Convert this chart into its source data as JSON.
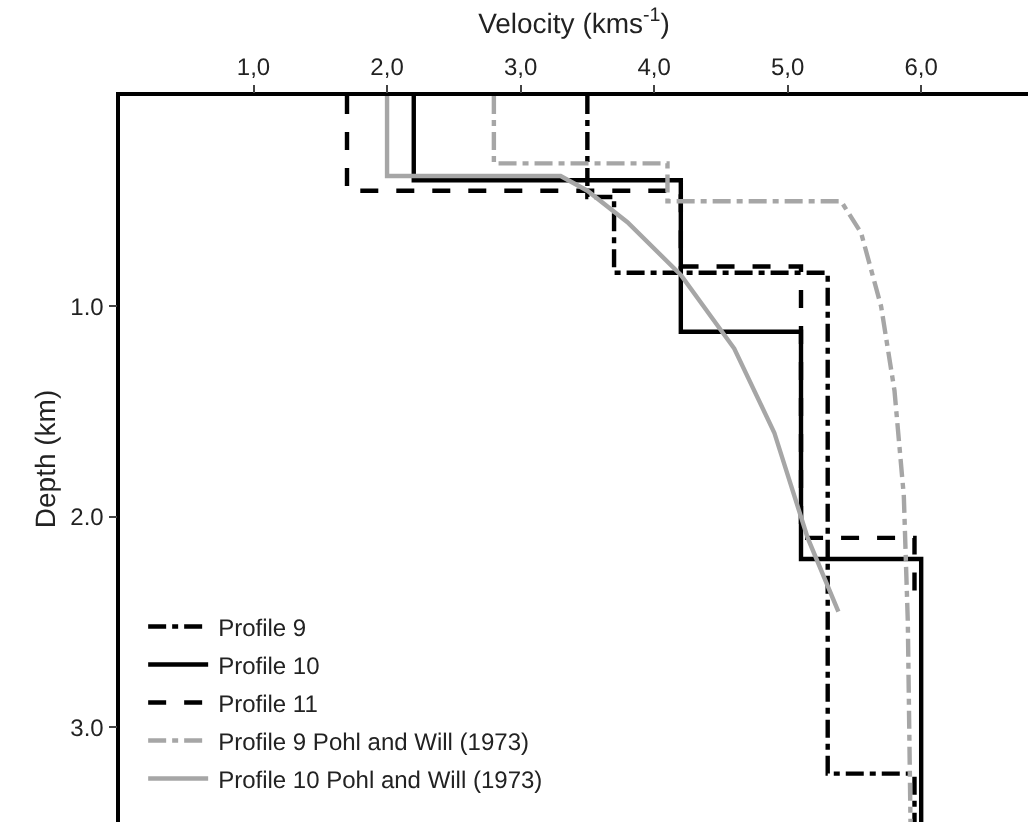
{
  "chart_data": {
    "type": "line",
    "xlabel": "Velocity (kms$^{-1}$)",
    "ylabel": "Depth (km)",
    "xlim": [
      0,
      6.8
    ],
    "xticks": [
      {
        "value": 1,
        "label": "1,0"
      },
      {
        "value": 2,
        "label": "2,0"
      },
      {
        "value": 3,
        "label": "3,0"
      },
      {
        "value": 4,
        "label": "4,0"
      },
      {
        "value": 5,
        "label": "5,0"
      },
      {
        "value": 6,
        "label": "6,0"
      }
    ],
    "ylim": [
      3.45,
      0
    ],
    "yticks": [
      {
        "value": 1,
        "label": "1.0"
      },
      {
        "value": 2,
        "label": "2.0"
      },
      {
        "value": 3,
        "label": "3.0"
      }
    ],
    "grid": false,
    "legend": "bottom left",
    "marker": "none",
    "series": [
      {
        "name": "Profile 9",
        "color": "#000000",
        "line_style": "dashdot",
        "x": [
          3.5,
          3.5,
          3.7,
          3.7,
          5.3,
          5.3,
          5.95,
          5.95
        ],
        "values": [
          0,
          0.48,
          0.48,
          0.84,
          0.84,
          3.22,
          3.22,
          3.45
        ]
      },
      {
        "name": "Profile 10",
        "color": "#000000",
        "line_style": "solid",
        "x": [
          2.2,
          2.2,
          4.2,
          4.2,
          5.1,
          5.1,
          6.0,
          6.0
        ],
        "values": [
          0,
          0.4,
          0.4,
          1.12,
          1.12,
          2.2,
          2.2,
          3.45
        ]
      },
      {
        "name": "Profile 11",
        "color": "#000000",
        "line_style": "dashed",
        "x": [
          1.7,
          1.7,
          4.2,
          4.2,
          5.1,
          5.1,
          5.95,
          5.95
        ],
        "values": [
          0,
          0.45,
          0.45,
          0.81,
          0.81,
          2.1,
          2.1,
          2.4
        ]
      },
      {
        "name": "Profile 9 Pohl and Will (1973)",
        "color": "#a6a6a6",
        "line_style": "dashdot",
        "x": [
          2.8,
          2.8,
          4.1,
          4.1,
          5.4,
          5.55,
          5.7,
          5.8,
          5.87,
          5.9,
          5.92
        ],
        "values": [
          0,
          0.32,
          0.32,
          0.5,
          0.5,
          0.65,
          1.0,
          1.4,
          1.9,
          2.5,
          3.45
        ]
      },
      {
        "name": "Profile 10 Pohl and Will (1973)",
        "color": "#a6a6a6",
        "line_style": "solid",
        "x": [
          2.0,
          2.0,
          3.3,
          3.5,
          3.8,
          4.2,
          4.6,
          4.9,
          5.15,
          5.38
        ],
        "values": [
          0,
          0.38,
          0.38,
          0.45,
          0.6,
          0.85,
          1.2,
          1.6,
          2.1,
          2.45
        ]
      }
    ]
  }
}
